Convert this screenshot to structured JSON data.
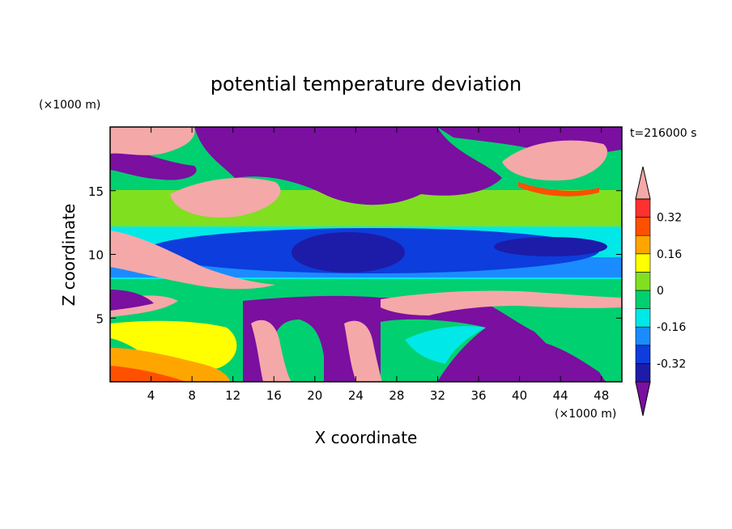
{
  "chart_data": {
    "type": "heatmap",
    "title": "potential temperature deviation",
    "xlabel": "X coordinate",
    "ylabel": "Z coordinate",
    "x_unit": "(×1000 m)",
    "y_unit": "(×1000 m)",
    "time_label": "t=216000 s",
    "xlim": [
      0,
      50
    ],
    "ylim": [
      0,
      20
    ],
    "xticks": [
      4,
      8,
      12,
      16,
      20,
      24,
      28,
      32,
      36,
      40,
      44,
      48
    ],
    "yticks": [
      5,
      10,
      15
    ],
    "colorbar": {
      "levels": [
        -0.4,
        -0.32,
        -0.24,
        -0.16,
        -0.08,
        0,
        0.08,
        0.16,
        0.24,
        0.32,
        0.4
      ],
      "labels": [
        "0.32",
        "0.16",
        "0",
        "-0.16",
        "-0.32"
      ],
      "label_values": [
        0.32,
        0.16,
        0,
        -0.16,
        -0.32
      ],
      "colors": [
        "#7a0fa0",
        "#1c1ca8",
        "#0d3ddc",
        "#1a8cff",
        "#00e8e8",
        "#00d070",
        "#80e020",
        "#ffff00",
        "#ffa500",
        "#ff5000",
        "#ff3030",
        "#f5a8a8"
      ],
      "extend": "both"
    }
  }
}
